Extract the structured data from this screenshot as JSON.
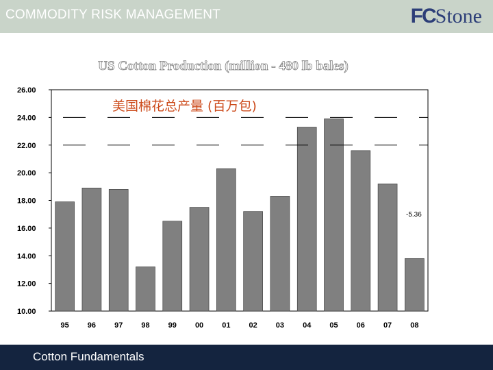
{
  "header": {
    "title": "COMMODITY RISK MANAGEMENT",
    "logo_fc": "FC",
    "logo_stone": "Stone"
  },
  "footer": {
    "label": "Cotton Fundamentals"
  },
  "colors": {
    "header_bg": "#c9d4c9",
    "footer_bg": "#14243f",
    "bar_fill": "#808080",
    "subtitle": "#cc4a1a",
    "logo": "#2c3e78"
  },
  "chart_data": {
    "type": "bar",
    "title": "US Cotton Production (million - 480 lb bales)",
    "subtitle": "美国棉花总产量 (百万包)",
    "categories": [
      "95",
      "96",
      "97",
      "98",
      "99",
      "00",
      "01",
      "02",
      "03",
      "04",
      "05",
      "06",
      "07",
      "08"
    ],
    "values": [
      17.9,
      18.9,
      18.8,
      13.2,
      16.5,
      17.5,
      20.3,
      17.2,
      18.3,
      23.3,
      23.9,
      21.6,
      19.2,
      13.8
    ],
    "y_ticks": [
      "26.00",
      "24.00",
      "22.00",
      "20.00",
      "18.00",
      "16.00",
      "14.00",
      "12.00",
      "10.00"
    ],
    "ylim": [
      10,
      26
    ],
    "reference_lines": [
      24,
      22
    ],
    "annotation": "-5.36",
    "xlabel": "",
    "ylabel": "",
    "grid": false,
    "legend": "none"
  }
}
